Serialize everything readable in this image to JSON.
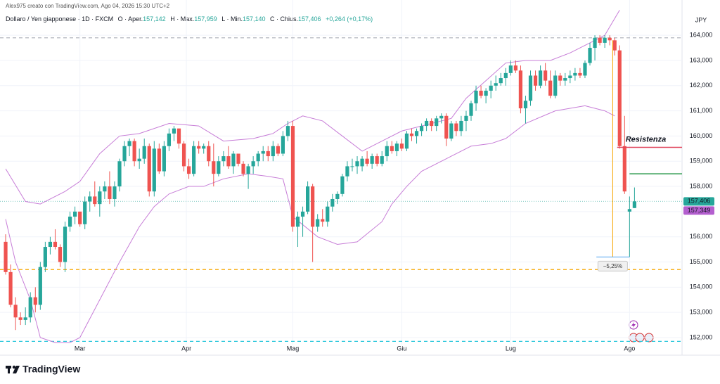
{
  "chart_data": {
    "type": "candlestick",
    "header": "Alex975 creato con TradingView.com, Ago 04, 2026 15:30 UTC+2",
    "legend": [
      "Dollaro / Yen giapponese · 1D · FXCM",
      "O · Aper.",
      "157,142",
      "H · Max.",
      "157,959",
      "L · Min.",
      "157,140",
      "C · Chius.",
      "157,406",
      "+0,264 (+0,17%)"
    ],
    "currency": "JPY",
    "brand": "TradingView",
    "up_color": "#26a69a",
    "down_color": "#ef5350",
    "xlim": [
      -1.14,
      136.6
    ],
    "ylim": [
      151.72,
      165.4
    ],
    "yticks": [
      {
        "value": 152,
        "label": "152,000"
      },
      {
        "value": 153,
        "label": "153,000"
      },
      {
        "value": 154,
        "label": "154,000"
      },
      {
        "value": 155,
        "label": "155,000"
      },
      {
        "value": 156,
        "label": "156,000"
      },
      {
        "value": 157,
        "label": "157,000"
      },
      {
        "value": 158,
        "label": "158,000"
      },
      {
        "value": 159,
        "label": "159,000"
      },
      {
        "value": 160,
        "label": "160,000"
      },
      {
        "value": 161,
        "label": "161,000"
      },
      {
        "value": 162,
        "label": "162,000"
      },
      {
        "value": 163,
        "label": "163,000"
      },
      {
        "value": 164,
        "label": "164,000"
      }
    ],
    "xticks": [
      {
        "value": 15,
        "label": "Mar"
      },
      {
        "value": 36.5,
        "label": "Apr"
      },
      {
        "value": 58,
        "label": "Mag"
      },
      {
        "value": 80,
        "label": "Giu"
      },
      {
        "value": 102,
        "label": "Lug"
      },
      {
        "value": 126,
        "label": "Ago"
      }
    ],
    "candles": [
      [
        155.8,
        156.1,
        154.5,
        154.6
      ],
      [
        154.6,
        154.9,
        153.2,
        153.3
      ],
      [
        153.3,
        153.6,
        152.3,
        152.8
      ],
      [
        152.8,
        153.0,
        152.5,
        152.7
      ],
      [
        152.7,
        153.2,
        152.5,
        152.8
      ],
      [
        152.8,
        153.8,
        152.6,
        153.6
      ],
      [
        153.6,
        154.0,
        153.0,
        153.3
      ],
      [
        153.3,
        155.0,
        153.1,
        154.8
      ],
      [
        154.8,
        155.8,
        154.6,
        155.6
      ],
      [
        155.6,
        156.0,
        155.3,
        155.8
      ],
      [
        155.8,
        156.3,
        155.5,
        155.6
      ],
      [
        155.6,
        155.7,
        154.8,
        155.0
      ],
      [
        155.0,
        156.6,
        154.6,
        156.4
      ],
      [
        156.4,
        157.0,
        156.2,
        156.8
      ],
      [
        156.8,
        157.2,
        156.5,
        157.0
      ],
      [
        157.0,
        157.0,
        156.4,
        156.5
      ],
      [
        156.5,
        157.6,
        156.3,
        157.4
      ],
      [
        157.4,
        157.8,
        157.0,
        157.6
      ],
      [
        157.6,
        158.2,
        157.2,
        157.3
      ],
      [
        157.3,
        158.0,
        156.8,
        157.8
      ],
      [
        157.8,
        158.2,
        157.5,
        158.0
      ],
      [
        158.0,
        158.6,
        157.3,
        157.5
      ],
      [
        157.5,
        158.2,
        157.2,
        158.0
      ],
      [
        158.0,
        159.1,
        157.8,
        159.0
      ],
      [
        159.0,
        159.8,
        158.8,
        159.6
      ],
      [
        159.6,
        159.9,
        159.2,
        159.8
      ],
      [
        159.8,
        159.9,
        158.8,
        159.0
      ],
      [
        159.0,
        159.5,
        158.7,
        159.1
      ],
      [
        159.1,
        159.9,
        158.9,
        159.6
      ],
      [
        159.6,
        159.7,
        157.6,
        157.8
      ],
      [
        157.8,
        159.8,
        157.6,
        159.5
      ],
      [
        159.5,
        159.7,
        158.5,
        158.6
      ],
      [
        158.6,
        159.8,
        158.4,
        159.6
      ],
      [
        159.6,
        160.3,
        159.4,
        160.1
      ],
      [
        160.1,
        160.4,
        159.8,
        160.3
      ],
      [
        160.3,
        160.3,
        159.5,
        159.7
      ],
      [
        159.7,
        159.8,
        158.6,
        158.8
      ],
      [
        158.8,
        159.1,
        158.3,
        158.5
      ],
      [
        158.5,
        159.8,
        158.4,
        159.6
      ],
      [
        159.6,
        159.8,
        159.3,
        159.5
      ],
      [
        159.5,
        159.7,
        159.3,
        159.6
      ],
      [
        159.6,
        159.8,
        158.8,
        159.0
      ],
      [
        159.0,
        159.7,
        158.0,
        158.5
      ],
      [
        158.5,
        159.2,
        158.4,
        159.0
      ],
      [
        159.0,
        159.4,
        158.8,
        159.2
      ],
      [
        159.2,
        159.6,
        158.7,
        158.8
      ],
      [
        158.8,
        159.4,
        158.5,
        159.3
      ],
      [
        159.3,
        159.3,
        158.8,
        158.9
      ],
      [
        158.9,
        159.0,
        158.4,
        158.5
      ],
      [
        158.5,
        158.9,
        157.9,
        158.8
      ],
      [
        158.8,
        159.2,
        158.5,
        159.0
      ],
      [
        159.0,
        159.4,
        158.8,
        159.3
      ],
      [
        159.3,
        159.6,
        159.0,
        159.4
      ],
      [
        159.4,
        159.6,
        159.0,
        159.2
      ],
      [
        159.2,
        159.8,
        159.0,
        159.6
      ],
      [
        159.6,
        159.7,
        159.2,
        159.3
      ],
      [
        159.3,
        160.2,
        159.2,
        160.0
      ],
      [
        160.0,
        160.6,
        159.8,
        160.4
      ],
      [
        160.4,
        160.6,
        156.2,
        156.4
      ],
      [
        156.4,
        157.0,
        155.6,
        156.8
      ],
      [
        156.8,
        157.2,
        156.0,
        157.0
      ],
      [
        157.0,
        158.2,
        156.9,
        158.0
      ],
      [
        158.0,
        158.1,
        155.0,
        156.4
      ],
      [
        156.4,
        156.9,
        156.2,
        156.7
      ],
      [
        156.7,
        157.1,
        156.4,
        156.6
      ],
      [
        156.6,
        157.4,
        156.4,
        157.2
      ],
      [
        157.2,
        157.7,
        157.0,
        157.5
      ],
      [
        157.5,
        157.8,
        157.3,
        157.7
      ],
      [
        157.7,
        158.5,
        157.6,
        158.4
      ],
      [
        158.4,
        159.0,
        158.2,
        158.8
      ],
      [
        158.8,
        159.1,
        158.6,
        158.8
      ],
      [
        158.8,
        159.2,
        158.5,
        159.0
      ],
      [
        158.8,
        159.2,
        158.6,
        159.1
      ],
      [
        159.1,
        159.4,
        158.8,
        158.9
      ],
      [
        158.9,
        159.3,
        158.7,
        159.2
      ],
      [
        159.2,
        159.3,
        158.8,
        158.9
      ],
      [
        158.9,
        159.4,
        158.8,
        159.2
      ],
      [
        159.2,
        159.8,
        159.0,
        159.6
      ],
      [
        159.6,
        159.8,
        159.3,
        159.4
      ],
      [
        159.4,
        159.8,
        159.2,
        159.7
      ],
      [
        159.7,
        159.9,
        159.4,
        159.5
      ],
      [
        159.5,
        160.2,
        159.4,
        160.1
      ],
      [
        160.1,
        160.3,
        159.8,
        160.0
      ],
      [
        160.0,
        160.3,
        159.7,
        160.2
      ],
      [
        160.2,
        160.5,
        160.0,
        160.4
      ],
      [
        160.4,
        160.7,
        160.2,
        160.6
      ],
      [
        160.6,
        160.7,
        160.2,
        160.4
      ],
      [
        160.4,
        160.8,
        160.2,
        160.7
      ],
      [
        160.7,
        160.9,
        160.5,
        160.8
      ],
      [
        160.8,
        160.9,
        159.6,
        159.9
      ],
      [
        159.9,
        160.6,
        159.8,
        160.5
      ],
      [
        160.5,
        160.6,
        160.0,
        160.2
      ],
      [
        160.2,
        160.8,
        160.0,
        160.6
      ],
      [
        160.6,
        161.0,
        160.2,
        160.8
      ],
      [
        160.8,
        161.4,
        160.6,
        161.3
      ],
      [
        161.3,
        162.0,
        161.0,
        161.8
      ],
      [
        161.8,
        162.0,
        161.5,
        161.6
      ],
      [
        161.6,
        161.9,
        161.3,
        161.8
      ],
      [
        161.8,
        162.2,
        161.5,
        162.0
      ],
      [
        162.0,
        162.4,
        161.8,
        162.1
      ],
      [
        162.1,
        162.5,
        162.0,
        162.3
      ],
      [
        162.3,
        162.7,
        162.0,
        162.5
      ],
      [
        162.5,
        163.0,
        162.4,
        162.8
      ],
      [
        162.8,
        163.0,
        162.5,
        162.6
      ],
      [
        162.6,
        162.8,
        160.9,
        161.1
      ],
      [
        161.1,
        161.6,
        160.5,
        161.4
      ],
      [
        161.4,
        162.6,
        161.2,
        162.4
      ],
      [
        162.4,
        162.6,
        161.8,
        162.0
      ],
      [
        162.0,
        162.8,
        161.9,
        162.6
      ],
      [
        162.6,
        162.9,
        162.0,
        162.2
      ],
      [
        162.2,
        162.6,
        161.5,
        161.6
      ],
      [
        161.6,
        162.6,
        161.5,
        162.4
      ],
      [
        162.4,
        162.5,
        162.0,
        162.2
      ],
      [
        162.2,
        162.5,
        162.0,
        162.3
      ],
      [
        162.3,
        162.6,
        162.1,
        162.4
      ],
      [
        162.4,
        162.7,
        162.2,
        162.5
      ],
      [
        162.5,
        162.7,
        162.3,
        162.4
      ],
      [
        162.4,
        163.0,
        162.3,
        162.9
      ],
      [
        162.9,
        163.7,
        162.8,
        163.5
      ],
      [
        163.5,
        164.0,
        163.0,
        163.9
      ],
      [
        163.9,
        164.0,
        163.6,
        163.7
      ],
      [
        163.7,
        164.0,
        163.5,
        163.9
      ],
      [
        163.9,
        164.0,
        163.6,
        163.8
      ],
      [
        163.8,
        163.9,
        163.2,
        163.4
      ],
      [
        163.4,
        163.6,
        159.5,
        159.6
      ],
      [
        159.6,
        160.8,
        157.7,
        157.8
      ],
      [
        157.0,
        157.6,
        155.2,
        157.1
      ],
      [
        157.142,
        157.959,
        157.14,
        157.406
      ]
    ],
    "bands": [
      {
        "color": "#c77dd7",
        "x": [
          0,
          4,
          7,
          12,
          15,
          19,
          23,
          27,
          33,
          39,
          44,
          50,
          54,
          57,
          60,
          64,
          68,
          72,
          76,
          80,
          84,
          90,
          93,
          97,
          101,
          105,
          110,
          114,
          118,
          121,
          124
        ],
        "values": [
          158.7,
          157.4,
          157.3,
          157.8,
          158.2,
          159.3,
          160.0,
          160.1,
          160.5,
          160.4,
          159.8,
          159.9,
          160.1,
          160.5,
          160.8,
          160.6,
          160.0,
          159.4,
          159.8,
          160.2,
          160.4,
          160.7,
          161.5,
          162.2,
          162.9,
          163.0,
          163.0,
          163.3,
          163.7,
          164.0,
          165.0
        ]
      },
      {
        "color": "#c77dd7",
        "x": [
          0,
          2,
          5,
          7,
          10,
          13,
          15,
          19,
          23,
          27,
          30,
          33,
          37,
          40,
          44,
          49,
          53,
          56,
          58,
          63,
          67,
          71,
          76,
          78,
          81,
          84,
          90,
          94,
          98,
          101,
          105,
          111,
          117,
          121,
          123
        ],
        "values": [
          156.7,
          155.0,
          153.5,
          152.0,
          151.8,
          151.8,
          152.0,
          153.5,
          155.0,
          156.4,
          157.2,
          157.7,
          158.0,
          158.0,
          158.3,
          158.5,
          158.4,
          158.3,
          156.8,
          156.0,
          155.7,
          155.8,
          156.6,
          157.3,
          158.0,
          158.6,
          159.2,
          159.6,
          159.7,
          159.9,
          160.5,
          161.0,
          161.2,
          161.0,
          160.8
        ]
      }
    ],
    "levels": [
      {
        "value": 163.9,
        "color": "#b2b5be",
        "style": "dashed"
      },
      {
        "value": 154.7,
        "color": "#f7a600",
        "style": "dashed"
      },
      {
        "value": 151.85,
        "color": "#26c6da",
        "style": "dashed"
      },
      {
        "value": 157.406,
        "color": "#8fd1c9",
        "style": "dotted"
      }
    ],
    "rays": [
      {
        "label": "Resistenza",
        "value": 159.55,
        "from": 123.5,
        "color": "#e0455b"
      },
      {
        "value": 158.5,
        "from": 126,
        "color": "#2e9b4f"
      }
    ],
    "measure": {
      "label": "−5,25%",
      "x": 122.6,
      "from": 163.8,
      "to": 155.2,
      "x_from": 119.3,
      "x_to": 126,
      "color": "#f7a600",
      "base_color": "#4fa3f0"
    },
    "price_labels": [
      {
        "value": 157.406,
        "label": "157,406",
        "color": "#26a69a"
      },
      {
        "value": 157.349,
        "label": "157,349",
        "color": "#b45fcf"
      }
    ]
  }
}
